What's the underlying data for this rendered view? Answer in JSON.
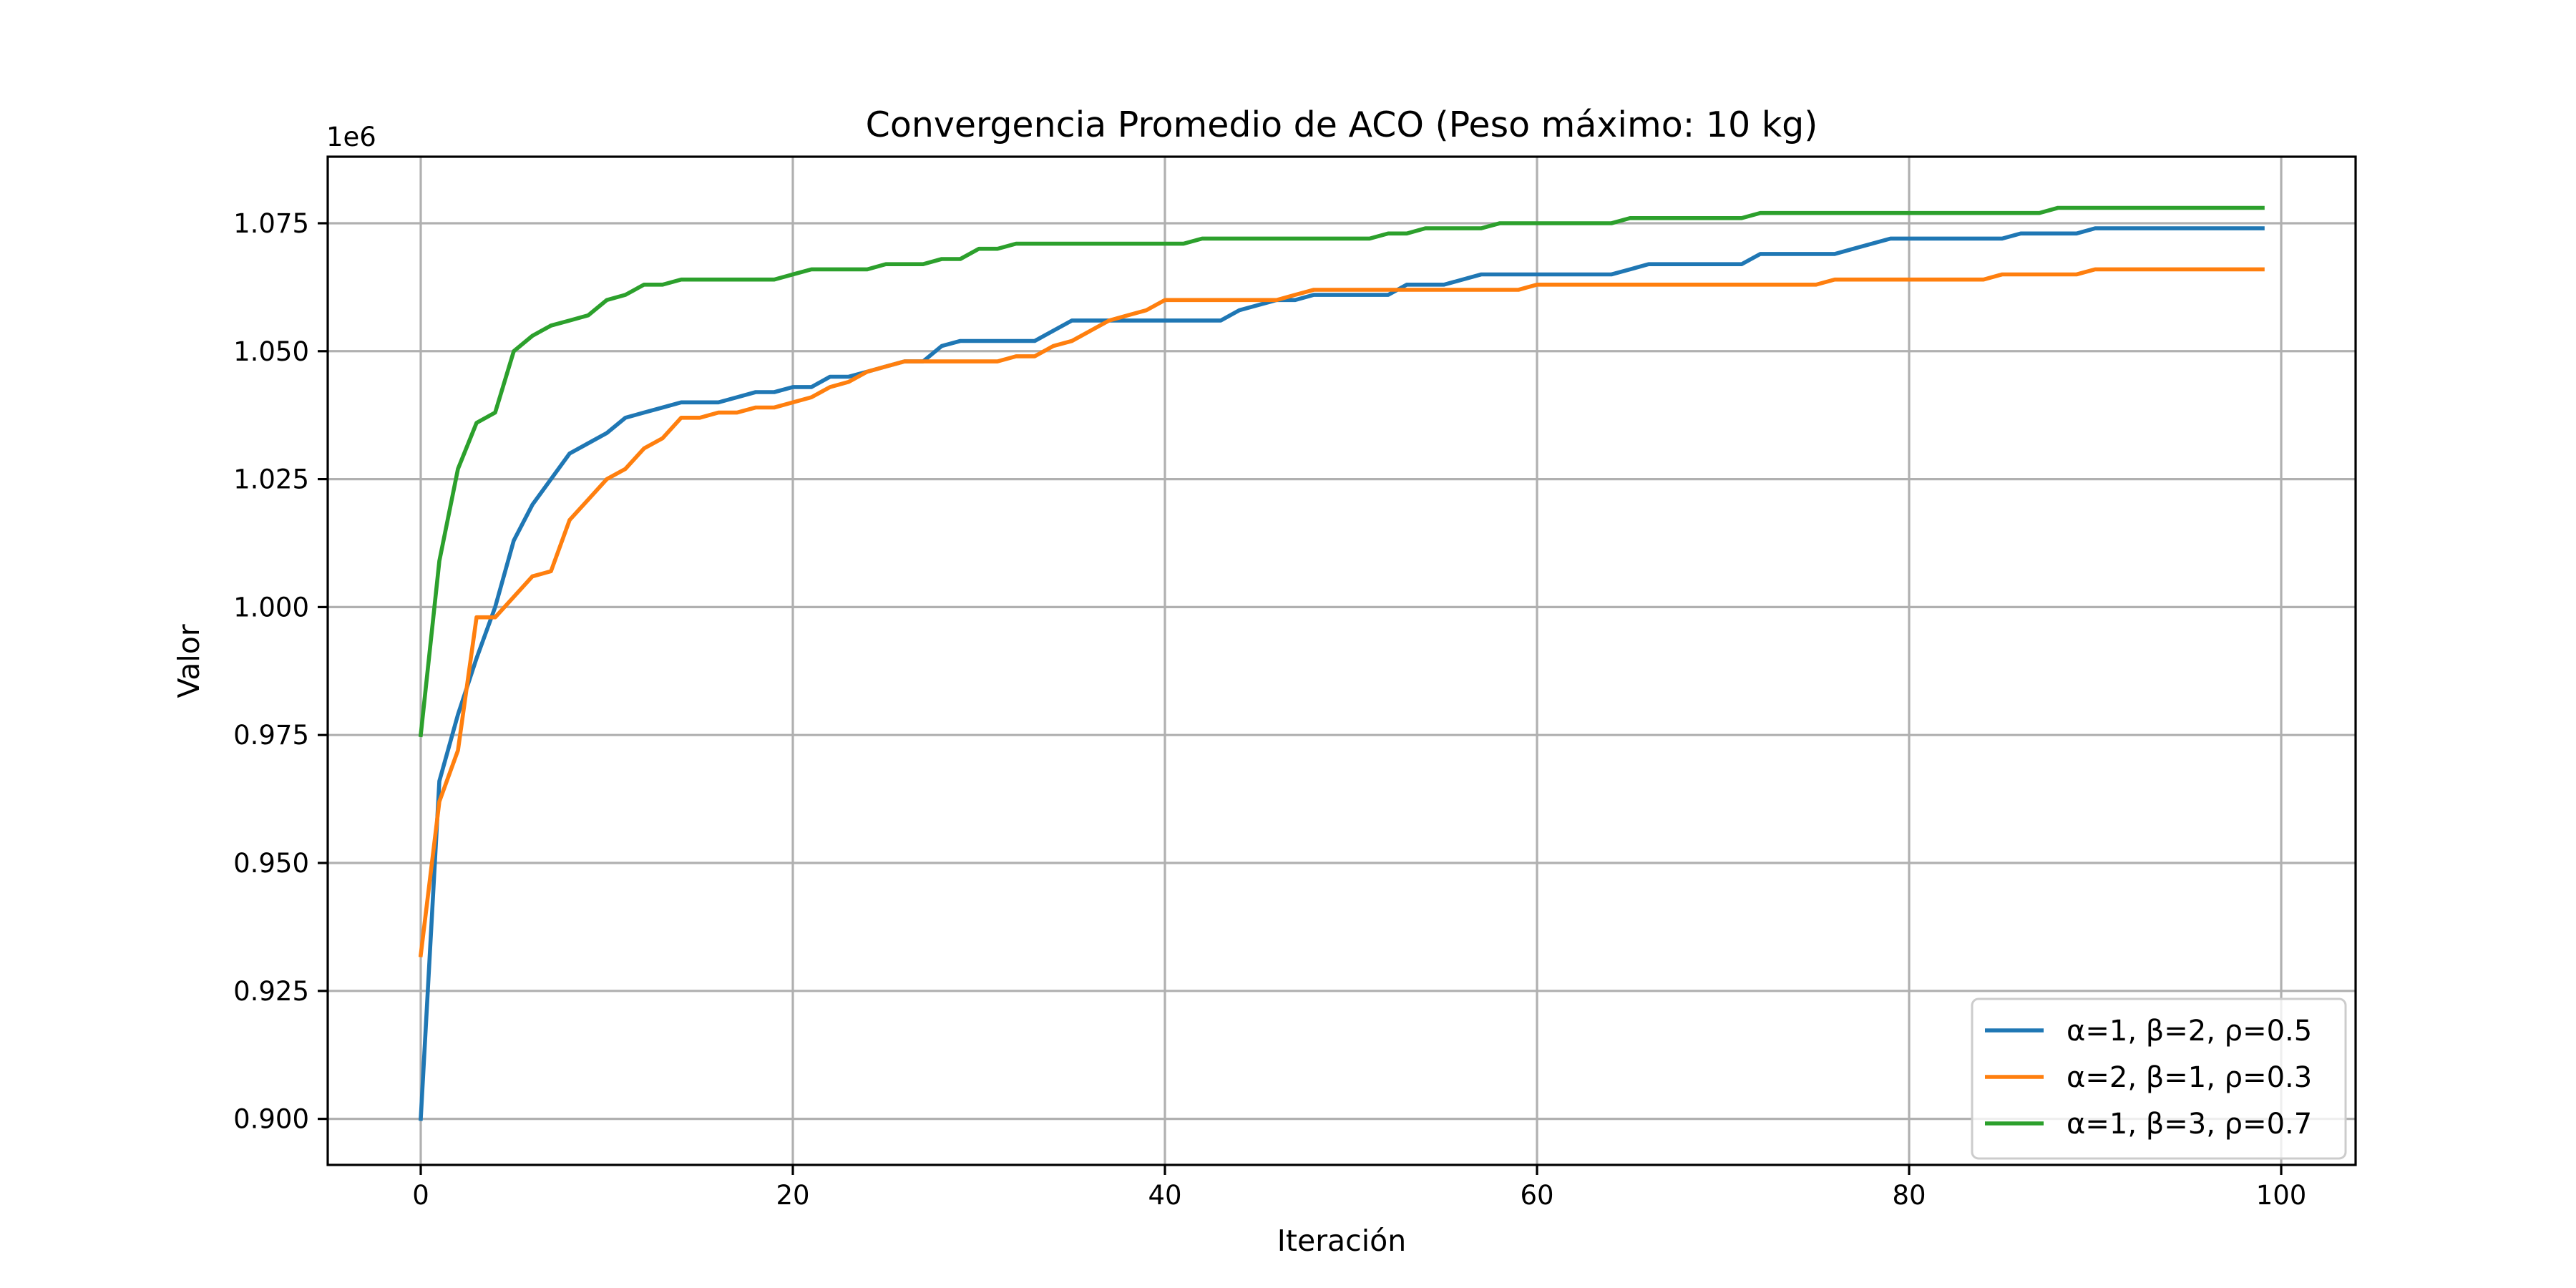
{
  "chart_data": {
    "type": "line",
    "title": "Convergencia Promedio de ACO (Peso máximo: 10 kg)",
    "xlabel": "Iteración",
    "ylabel": "Valor",
    "offset_text": "1e6",
    "xlim": [
      -5,
      104
    ],
    "ylim": [
      0.891,
      1.088
    ],
    "x_ticks": [
      0,
      20,
      40,
      60,
      80,
      100
    ],
    "x_tick_labels": [
      "0",
      "20",
      "40",
      "60",
      "80",
      "100"
    ],
    "y_ticks": [
      0.9,
      0.925,
      0.95,
      0.975,
      1.0,
      1.025,
      1.05,
      1.075
    ],
    "y_tick_labels": [
      "0.900",
      "0.925",
      "0.950",
      "0.975",
      "1.000",
      "1.025",
      "1.050",
      "1.075"
    ],
    "grid": true,
    "legend_position": "bottom-right",
    "series": [
      {
        "name": "α=1, β=2, ρ=0.5",
        "color": "#1f77b4",
        "values": [
          0.9,
          0.966,
          0.979,
          0.99,
          1.0,
          1.013,
          1.02,
          1.025,
          1.03,
          1.032,
          1.034,
          1.037,
          1.038,
          1.039,
          1.04,
          1.04,
          1.04,
          1.041,
          1.042,
          1.042,
          1.043,
          1.043,
          1.045,
          1.045,
          1.046,
          1.047,
          1.048,
          1.048,
          1.051,
          1.052,
          1.052,
          1.052,
          1.052,
          1.052,
          1.054,
          1.056,
          1.056,
          1.056,
          1.056,
          1.056,
          1.056,
          1.056,
          1.056,
          1.056,
          1.058,
          1.059,
          1.06,
          1.06,
          1.061,
          1.061,
          1.061,
          1.061,
          1.061,
          1.063,
          1.063,
          1.063,
          1.064,
          1.065,
          1.065,
          1.065,
          1.065,
          1.065,
          1.065,
          1.065,
          1.065,
          1.066,
          1.067,
          1.067,
          1.067,
          1.067,
          1.067,
          1.067,
          1.069,
          1.069,
          1.069,
          1.069,
          1.069,
          1.07,
          1.071,
          1.072,
          1.072,
          1.072,
          1.072,
          1.072,
          1.072,
          1.072,
          1.073,
          1.073,
          1.073,
          1.073,
          1.074,
          1.074,
          1.074,
          1.074,
          1.074,
          1.074,
          1.074,
          1.074,
          1.074,
          1.074
        ]
      },
      {
        "name": "α=2, β=1, ρ=0.3",
        "color": "#ff7f0e",
        "values": [
          0.932,
          0.962,
          0.972,
          0.998,
          0.998,
          1.002,
          1.006,
          1.007,
          1.017,
          1.021,
          1.025,
          1.027,
          1.031,
          1.033,
          1.037,
          1.037,
          1.038,
          1.038,
          1.039,
          1.039,
          1.04,
          1.041,
          1.043,
          1.044,
          1.046,
          1.047,
          1.048,
          1.048,
          1.048,
          1.048,
          1.048,
          1.048,
          1.049,
          1.049,
          1.051,
          1.052,
          1.054,
          1.056,
          1.057,
          1.058,
          1.06,
          1.06,
          1.06,
          1.06,
          1.06,
          1.06,
          1.06,
          1.061,
          1.062,
          1.062,
          1.062,
          1.062,
          1.062,
          1.062,
          1.062,
          1.062,
          1.062,
          1.062,
          1.062,
          1.062,
          1.063,
          1.063,
          1.063,
          1.063,
          1.063,
          1.063,
          1.063,
          1.063,
          1.063,
          1.063,
          1.063,
          1.063,
          1.063,
          1.063,
          1.063,
          1.063,
          1.064,
          1.064,
          1.064,
          1.064,
          1.064,
          1.064,
          1.064,
          1.064,
          1.064,
          1.065,
          1.065,
          1.065,
          1.065,
          1.065,
          1.066,
          1.066,
          1.066,
          1.066,
          1.066,
          1.066,
          1.066,
          1.066,
          1.066,
          1.066
        ]
      },
      {
        "name": "α=1, β=3, ρ=0.7",
        "color": "#2ca02c",
        "values": [
          0.975,
          1.009,
          1.027,
          1.036,
          1.038,
          1.05,
          1.053,
          1.055,
          1.056,
          1.057,
          1.06,
          1.061,
          1.063,
          1.063,
          1.064,
          1.064,
          1.064,
          1.064,
          1.064,
          1.064,
          1.065,
          1.066,
          1.066,
          1.066,
          1.066,
          1.067,
          1.067,
          1.067,
          1.068,
          1.068,
          1.07,
          1.07,
          1.071,
          1.071,
          1.071,
          1.071,
          1.071,
          1.071,
          1.071,
          1.071,
          1.071,
          1.071,
          1.072,
          1.072,
          1.072,
          1.072,
          1.072,
          1.072,
          1.072,
          1.072,
          1.072,
          1.072,
          1.073,
          1.073,
          1.074,
          1.074,
          1.074,
          1.074,
          1.075,
          1.075,
          1.075,
          1.075,
          1.075,
          1.075,
          1.075,
          1.076,
          1.076,
          1.076,
          1.076,
          1.076,
          1.076,
          1.076,
          1.077,
          1.077,
          1.077,
          1.077,
          1.077,
          1.077,
          1.077,
          1.077,
          1.077,
          1.077,
          1.077,
          1.077,
          1.077,
          1.077,
          1.077,
          1.077,
          1.078,
          1.078,
          1.078,
          1.078,
          1.078,
          1.078,
          1.078,
          1.078,
          1.078,
          1.078,
          1.078,
          1.078
        ]
      }
    ]
  }
}
